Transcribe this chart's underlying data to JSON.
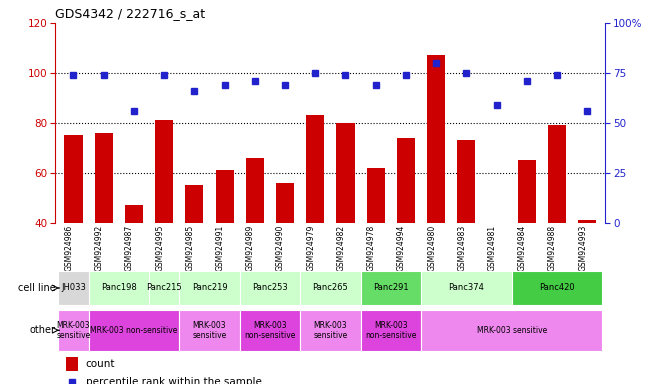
{
  "title": "GDS4342 / 222716_s_at",
  "samples": [
    "GSM924986",
    "GSM924992",
    "GSM924987",
    "GSM924995",
    "GSM924985",
    "GSM924991",
    "GSM924989",
    "GSM924990",
    "GSM924979",
    "GSM924982",
    "GSM924978",
    "GSM924994",
    "GSM924980",
    "GSM924983",
    "GSM924981",
    "GSM924984",
    "GSM924988",
    "GSM924993"
  ],
  "counts": [
    75,
    76,
    47,
    81,
    55,
    61,
    66,
    56,
    83,
    80,
    62,
    74,
    107,
    73,
    40,
    65,
    79,
    41
  ],
  "percentiles": [
    74,
    74,
    56,
    74,
    66,
    69,
    71,
    69,
    75,
    74,
    69,
    74,
    80,
    75,
    59,
    71,
    74,
    56
  ],
  "ylim_left": [
    40,
    120
  ],
  "ylim_right": [
    0,
    100
  ],
  "yticks_left": [
    40,
    60,
    80,
    100,
    120
  ],
  "yticks_right": [
    0,
    25,
    50,
    75,
    100
  ],
  "ytick_labels_right": [
    "0",
    "25",
    "50",
    "75",
    "100%"
  ],
  "bar_color": "#cc0000",
  "dot_color": "#2222cc",
  "cell_line_col_map": {
    "JH033": [
      0
    ],
    "Panc198": [
      1,
      2
    ],
    "Panc215": [
      3
    ],
    "Panc219": [
      4,
      5
    ],
    "Panc253": [
      6,
      7
    ],
    "Panc265": [
      8,
      9
    ],
    "Panc291": [
      10,
      11
    ],
    "Panc374": [
      12,
      13,
      14
    ],
    "Panc420": [
      15,
      16,
      17
    ]
  },
  "cell_line_colors": {
    "JH033": "#d8d8d8",
    "Panc198": "#ccffcc",
    "Panc215": "#ccffcc",
    "Panc219": "#ccffcc",
    "Panc253": "#ccffcc",
    "Panc265": "#ccffcc",
    "Panc291": "#66dd66",
    "Panc374": "#ccffcc",
    "Panc420": "#44cc44"
  },
  "other_spans": [
    {
      "label": "MRK-003\nsensitive",
      "cols": [
        0,
        0
      ],
      "color": "#ee88ee"
    },
    {
      "label": "MRK-003 non-sensitive",
      "cols": [
        1,
        3
      ],
      "color": "#dd44dd"
    },
    {
      "label": "MRK-003\nsensitive",
      "cols": [
        4,
        5
      ],
      "color": "#ee88ee"
    },
    {
      "label": "MRK-003\nnon-sensitive",
      "cols": [
        6,
        7
      ],
      "color": "#dd44dd"
    },
    {
      "label": "MRK-003\nsensitive",
      "cols": [
        8,
        9
      ],
      "color": "#ee88ee"
    },
    {
      "label": "MRK-003\nnon-sensitive",
      "cols": [
        10,
        11
      ],
      "color": "#dd44dd"
    },
    {
      "label": "MRK-003 sensitive",
      "cols": [
        12,
        17
      ],
      "color": "#ee88ee"
    }
  ],
  "background_color": "#ffffff",
  "left_color": "#cc0000",
  "right_color": "#2222cc"
}
